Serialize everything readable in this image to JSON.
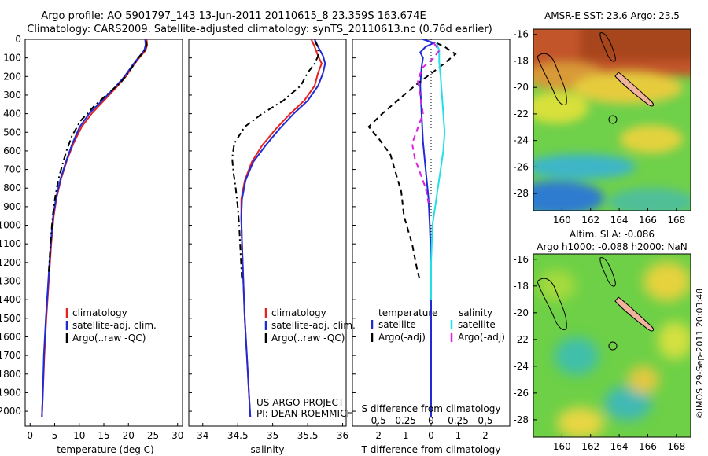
{
  "title": {
    "line1": "Argo profile: AO 5901797_143 13-Jun-2011 20110615_8 23.359S 163.674E",
    "line2": "Climatology: CARS2009. Satellite-adjusted climatology: synTS_20110613.nc (0.76d earlier)"
  },
  "credit": {
    "project": "US ARGO PROJECT",
    "pi": "PI: DEAN ROEMMICH",
    "imos": "©IMOS 29-Sep-2011 20:03:48"
  },
  "colors": {
    "climatology": "#e8211f",
    "satellite": "#1f2bd6",
    "argo": "#000000",
    "sat_salinity": "#22e0e8",
    "argo_salinity": "#e020e0"
  },
  "chart_data": [
    {
      "type": "line",
      "name": "temperature",
      "xlabel": "temperature (deg C)",
      "ylabel": "",
      "xlim": [
        -1,
        31
      ],
      "ylim": [
        2080,
        0
      ],
      "xticks": [
        "0",
        "5",
        "10",
        "15",
        "20",
        "25",
        "30"
      ],
      "yticks": [
        "0",
        "100",
        "200",
        "300",
        "400",
        "500",
        "600",
        "700",
        "800",
        "900",
        "1000",
        "1100",
        "1200",
        "1300",
        "1400",
        "1500",
        "1600",
        "1700",
        "1800",
        "1900",
        "2000"
      ],
      "legend": {
        "placement": "lower-left",
        "items": [
          "climatology",
          "satellite-adj. clim.",
          "Argo(..raw -QC)"
        ]
      },
      "series": [
        {
          "name": "climatology",
          "color": "#e8211f",
          "dash": "solid",
          "points": [
            [
              23.7,
              0
            ],
            [
              23.8,
              30
            ],
            [
              23.5,
              60
            ],
            [
              22.5,
              90
            ],
            [
              21.0,
              140
            ],
            [
              19.5,
              200
            ],
            [
              17.5,
              260
            ],
            [
              15.0,
              330
            ],
            [
              12.5,
              400
            ],
            [
              10.5,
              470
            ],
            [
              8.8,
              560
            ],
            [
              7.5,
              650
            ],
            [
              6.3,
              750
            ],
            [
              5.4,
              850
            ],
            [
              4.8,
              950
            ],
            [
              4.3,
              1100
            ],
            [
              3.8,
              1300
            ],
            [
              3.3,
              1500
            ],
            [
              2.9,
              1700
            ],
            [
              2.6,
              1900
            ],
            [
              2.4,
              2030
            ]
          ]
        },
        {
          "name": "satellite-adj. clim.",
          "color": "#1f2bd6",
          "dash": "solid",
          "points": [
            [
              23.4,
              0
            ],
            [
              23.5,
              30
            ],
            [
              23.2,
              60
            ],
            [
              22.3,
              90
            ],
            [
              20.8,
              140
            ],
            [
              19.2,
              200
            ],
            [
              17.2,
              260
            ],
            [
              14.6,
              330
            ],
            [
              12.0,
              400
            ],
            [
              10.1,
              470
            ],
            [
              8.6,
              560
            ],
            [
              7.4,
              650
            ],
            [
              6.2,
              750
            ],
            [
              5.3,
              850
            ],
            [
              4.7,
              950
            ],
            [
              4.2,
              1100
            ],
            [
              3.7,
              1300
            ],
            [
              3.2,
              1500
            ],
            [
              2.8,
              1700
            ],
            [
              2.6,
              1900
            ],
            [
              2.4,
              2030
            ]
          ]
        },
        {
          "name": "Argo(..raw -QC)",
          "color": "#000000",
          "dash": "dashdot",
          "points": [
            [
              23.6,
              10
            ],
            [
              23.7,
              30
            ],
            [
              23.3,
              60
            ],
            [
              22.0,
              100
            ],
            [
              20.5,
              160
            ],
            [
              18.5,
              230
            ],
            [
              15.5,
              300
            ],
            [
              13.0,
              360
            ],
            [
              10.2,
              440
            ],
            [
              8.5,
              520
            ],
            [
              7.4,
              600
            ],
            [
              6.5,
              680
            ],
            [
              5.7,
              760
            ],
            [
              5.1,
              850
            ],
            [
              4.6,
              950
            ],
            [
              4.2,
              1080
            ],
            [
              3.8,
              1250
            ]
          ]
        }
      ]
    },
    {
      "type": "line",
      "name": "salinity",
      "xlabel": "salinity",
      "ylabel": "",
      "xlim": [
        33.8,
        36.05
      ],
      "ylim": [
        2080,
        0
      ],
      "xticks": [
        "34",
        "34.5",
        "35",
        "35.5",
        "36"
      ],
      "legend": {
        "placement": "lower-right",
        "items": [
          "climatology",
          "satellite-adj. clim.",
          "Argo(..raw -QC)"
        ]
      },
      "series": [
        {
          "name": "climatology",
          "color": "#e8211f",
          "dash": "solid",
          "points": [
            [
              35.55,
              0
            ],
            [
              35.6,
              40
            ],
            [
              35.65,
              90
            ],
            [
              35.7,
              130
            ],
            [
              35.65,
              180
            ],
            [
              35.6,
              250
            ],
            [
              35.45,
              330
            ],
            [
              35.25,
              400
            ],
            [
              35.05,
              480
            ],
            [
              34.85,
              570
            ],
            [
              34.7,
              660
            ],
            [
              34.6,
              760
            ],
            [
              34.55,
              860
            ],
            [
              34.55,
              960
            ],
            [
              34.56,
              1100
            ],
            [
              34.58,
              1300
            ],
            [
              34.6,
              1500
            ],
            [
              34.63,
              1700
            ],
            [
              34.66,
              1900
            ],
            [
              34.68,
              2030
            ]
          ]
        },
        {
          "name": "satellite-adj. clim.",
          "color": "#1f2bd6",
          "dash": "solid",
          "points": [
            [
              35.6,
              0
            ],
            [
              35.65,
              40
            ],
            [
              35.72,
              90
            ],
            [
              35.75,
              130
            ],
            [
              35.72,
              180
            ],
            [
              35.65,
              250
            ],
            [
              35.5,
              330
            ],
            [
              35.3,
              400
            ],
            [
              35.1,
              480
            ],
            [
              34.9,
              570
            ],
            [
              34.72,
              660
            ],
            [
              34.61,
              760
            ],
            [
              34.56,
              860
            ],
            [
              34.55,
              960
            ],
            [
              34.56,
              1100
            ],
            [
              34.58,
              1300
            ],
            [
              34.6,
              1500
            ],
            [
              34.63,
              1700
            ],
            [
              34.66,
              1900
            ],
            [
              34.68,
              2030
            ]
          ]
        },
        {
          "name": "Argo(..raw -QC)",
          "color": "#000000",
          "dash": "dashdot",
          "points": [
            [
              35.6,
              10
            ],
            [
              35.65,
              40
            ],
            [
              35.65,
              90
            ],
            [
              35.6,
              130
            ],
            [
              35.5,
              180
            ],
            [
              35.4,
              250
            ],
            [
              35.15,
              330
            ],
            [
              34.85,
              400
            ],
            [
              34.6,
              470
            ],
            [
              34.45,
              560
            ],
            [
              34.42,
              640
            ],
            [
              34.44,
              720
            ],
            [
              34.47,
              800
            ],
            [
              34.5,
              900
            ],
            [
              34.52,
              1000
            ],
            [
              34.54,
              1150
            ],
            [
              34.56,
              1300
            ]
          ]
        }
      ]
    },
    {
      "type": "line",
      "name": "difference",
      "xlabel": "T difference from climatology",
      "xlabel_top": "S difference from climatology",
      "xlim": [
        -2.9,
        2.9
      ],
      "ylim": [
        2080,
        0
      ],
      "xticks": [
        "-2",
        "-1",
        "0",
        "1",
        "2"
      ],
      "xticks_top": [
        "-0.5",
        "-0.25",
        "0",
        "0.25",
        "0.5"
      ],
      "legend": {
        "placement": "lower",
        "temperature_title": "temperature",
        "salinity_title": "salinity",
        "items": [
          "satellite",
          "Argo(-adj)",
          "satellite",
          "Argo(-adj)"
        ]
      },
      "series": [
        {
          "name": "temperature satellite",
          "color": "#1f2bd6",
          "dash": "solid",
          "points": [
            [
              -0.3,
              0
            ],
            [
              0.1,
              20
            ],
            [
              -0.2,
              40
            ],
            [
              -0.4,
              70
            ],
            [
              -0.3,
              100
            ],
            [
              -0.35,
              150
            ],
            [
              -0.4,
              250
            ],
            [
              -0.35,
              400
            ],
            [
              -0.3,
              550
            ],
            [
              -0.2,
              700
            ],
            [
              -0.1,
              850
            ],
            [
              -0.05,
              1000
            ],
            [
              0.0,
              1200
            ],
            [
              0.0,
              1500
            ],
            [
              0.0,
              1800
            ],
            [
              0.0,
              2030
            ]
          ]
        },
        {
          "name": "temperature Argo(-adj)",
          "color": "#000000",
          "dash": "dashed",
          "points": [
            [
              0.2,
              20
            ],
            [
              0.5,
              40
            ],
            [
              0.9,
              80
            ],
            [
              0.4,
              140
            ],
            [
              -0.6,
              250
            ],
            [
              -1.8,
              400
            ],
            [
              -2.3,
              470
            ],
            [
              -1.9,
              540
            ],
            [
              -1.5,
              620
            ],
            [
              -1.3,
              720
            ],
            [
              -1.1,
              820
            ],
            [
              -1.0,
              950
            ],
            [
              -0.7,
              1100
            ],
            [
              -0.5,
              1250
            ],
            [
              -0.4,
              1300
            ]
          ]
        },
        {
          "name": "salinity satellite",
          "color": "#22e0e8",
          "dash": "solid",
          "points": [
            [
              0.2,
              20
            ],
            [
              0.3,
              60
            ],
            [
              0.3,
              120
            ],
            [
              0.35,
              200
            ],
            [
              0.4,
              300
            ],
            [
              0.45,
              400
            ],
            [
              0.5,
              500
            ],
            [
              0.45,
              600
            ],
            [
              0.35,
              700
            ],
            [
              0.25,
              800
            ],
            [
              0.15,
              900
            ],
            [
              0.05,
              1000
            ],
            [
              0.0,
              1200
            ],
            [
              0.0,
              1400
            ]
          ]
        },
        {
          "name": "salinity Argo(-adj)",
          "color": "#e020e0",
          "dash": "dashed",
          "points": [
            [
              0.1,
              20
            ],
            [
              0.3,
              60
            ],
            [
              0.1,
              100
            ],
            [
              -0.3,
              150
            ],
            [
              -0.5,
              220
            ],
            [
              -0.4,
              300
            ],
            [
              -0.3,
              400
            ],
            [
              -0.5,
              480
            ],
            [
              -0.7,
              560
            ],
            [
              -0.6,
              640
            ],
            [
              -0.4,
              720
            ],
            [
              -0.2,
              800
            ],
            [
              -0.1,
              880
            ]
          ]
        }
      ]
    },
    {
      "type": "heatmap",
      "name": "sst-map",
      "title": "AMSR-E SST: 23.6 Argo: 23.5",
      "xlim": [
        158,
        169
      ],
      "ylim": [
        -29.3,
        -15.6
      ],
      "xticks": [
        "160",
        "162",
        "164",
        "166",
        "168"
      ],
      "yticks": [
        "-16",
        "-18",
        "-20",
        "-22",
        "-24",
        "-26",
        "-28"
      ],
      "marker": {
        "lon": 163.674,
        "lat": -23.359
      }
    },
    {
      "type": "heatmap",
      "name": "sla-map",
      "title_line1": "Altim. SLA: -0.086",
      "title_line2": "Argo h1000: -0.088 h2000: NaN",
      "xlim": [
        158,
        169
      ],
      "ylim": [
        -29.3,
        -15.6
      ],
      "xticks": [
        "160",
        "162",
        "164",
        "166",
        "168"
      ],
      "yticks": [
        "-16",
        "-18",
        "-20",
        "-22",
        "-24",
        "-26",
        "-28"
      ],
      "marker": {
        "lon": 163.674,
        "lat": -23.359
      }
    }
  ]
}
